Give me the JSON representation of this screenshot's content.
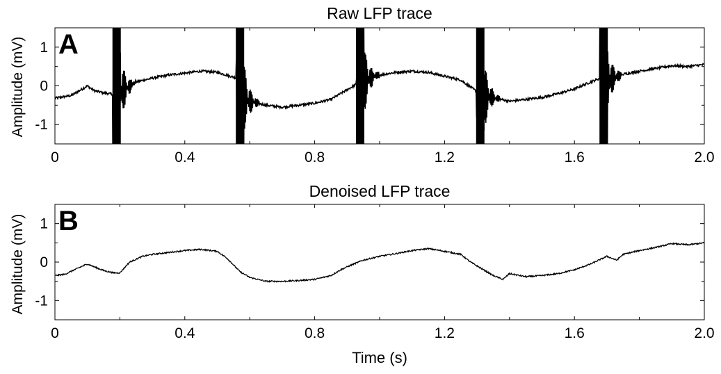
{
  "chart_data": [
    {
      "type": "line",
      "panel_label": "A",
      "title": "Raw LFP trace",
      "xlabel": "",
      "ylabel": "Amplitude (mV)",
      "xlim": [
        0,
        2.0
      ],
      "ylim": [
        -1.5,
        1.5
      ],
      "xticks": [
        0,
        0.4,
        0.8,
        1.2,
        1.6,
        2.0
      ],
      "xtick_labels": [
        "0",
        "0.4",
        "0.8",
        "1.2",
        "1.6",
        "2.0"
      ],
      "yticks": [
        1,
        0,
        -1
      ],
      "ytick_labels": [
        "1",
        "0",
        "-1"
      ],
      "grid": false,
      "line_color": "#000000",
      "artifact_times": [
        0.19,
        0.57,
        0.94,
        1.31,
        1.69
      ],
      "series": [
        {
          "x": [
            0,
            0.05,
            0.1,
            0.12,
            0.15,
            0.18,
            0.19,
            0.22,
            0.25,
            0.3,
            0.35,
            0.4,
            0.45,
            0.5,
            0.56,
            0.57,
            0.6,
            0.65,
            0.7,
            0.75,
            0.8,
            0.85,
            0.9,
            0.93,
            0.94,
            0.97,
            1.0,
            1.05,
            1.1,
            1.15,
            1.2,
            1.25,
            1.3,
            1.31,
            1.35,
            1.4,
            1.45,
            1.5,
            1.55,
            1.6,
            1.65,
            1.68,
            1.69,
            1.72,
            1.75,
            1.8,
            1.85,
            1.9,
            1.95,
            2.0
          ],
          "y": [
            -0.32,
            -0.25,
            0.0,
            -0.12,
            -0.18,
            -0.22,
            -0.25,
            -0.05,
            0.1,
            0.2,
            0.28,
            0.33,
            0.38,
            0.35,
            0.2,
            -0.2,
            -0.4,
            -0.5,
            -0.55,
            -0.5,
            -0.45,
            -0.35,
            -0.1,
            0.05,
            0.1,
            0.2,
            0.28,
            0.35,
            0.38,
            0.35,
            0.25,
            0.15,
            -0.15,
            -0.25,
            -0.3,
            -0.4,
            -0.35,
            -0.3,
            -0.2,
            -0.08,
            0.1,
            0.2,
            0.1,
            0.2,
            0.3,
            0.38,
            0.45,
            0.52,
            0.5,
            0.55
          ]
        }
      ]
    },
    {
      "type": "line",
      "panel_label": "B",
      "title": "Denoised LFP trace",
      "xlabel": "Time (s)",
      "ylabel": "Amplitude (mV)",
      "xlim": [
        0,
        2.0
      ],
      "ylim": [
        -1.5,
        1.5
      ],
      "xticks": [
        0,
        0.4,
        0.8,
        1.2,
        1.6,
        2.0
      ],
      "xtick_labels": [
        "0",
        "0.4",
        "0.8",
        "1.2",
        "1.6",
        "2.0"
      ],
      "yticks": [
        1,
        0,
        -1
      ],
      "ytick_labels": [
        "1",
        "0",
        "-1"
      ],
      "grid": false,
      "line_color": "#000000",
      "series": [
        {
          "x": [
            0,
            0.03,
            0.06,
            0.1,
            0.12,
            0.15,
            0.18,
            0.2,
            0.23,
            0.27,
            0.3,
            0.35,
            0.4,
            0.45,
            0.5,
            0.53,
            0.57,
            0.6,
            0.65,
            0.7,
            0.75,
            0.8,
            0.85,
            0.88,
            0.92,
            0.95,
            1.0,
            1.05,
            1.1,
            1.15,
            1.2,
            1.25,
            1.28,
            1.3,
            1.35,
            1.38,
            1.4,
            1.45,
            1.5,
            1.55,
            1.6,
            1.65,
            1.7,
            1.73,
            1.75,
            1.8,
            1.85,
            1.9,
            1.95,
            2.0
          ],
          "y": [
            -0.35,
            -0.32,
            -0.2,
            -0.05,
            -0.12,
            -0.22,
            -0.28,
            -0.28,
            0.0,
            0.15,
            0.2,
            0.25,
            0.3,
            0.33,
            0.28,
            0.1,
            -0.25,
            -0.4,
            -0.5,
            -0.5,
            -0.48,
            -0.45,
            -0.35,
            -0.2,
            -0.05,
            0.05,
            0.15,
            0.22,
            0.3,
            0.35,
            0.28,
            0.2,
            0.0,
            -0.1,
            -0.35,
            -0.45,
            -0.3,
            -0.38,
            -0.35,
            -0.3,
            -0.2,
            -0.05,
            0.15,
            0.05,
            0.2,
            0.3,
            0.38,
            0.48,
            0.45,
            0.5
          ]
        }
      ]
    }
  ]
}
